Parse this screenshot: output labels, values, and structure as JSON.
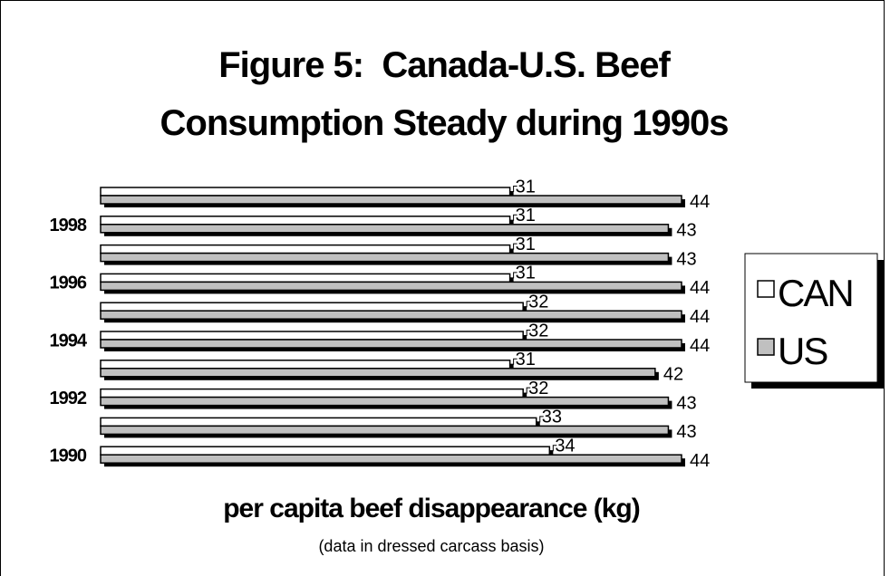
{
  "chart_data": {
    "type": "hbar",
    "title": "Figure 5:  Canada-U.S. Beef Consumption Steady during 1990s",
    "x_label": "per capita beef disappearance (kg)",
    "subtitle": "(data in dressed carcass basis)",
    "categories": [
      null,
      "1998",
      null,
      "1996",
      null,
      "1994",
      null,
      "1992",
      null,
      "1990"
    ],
    "series": [
      {
        "name": "CAN",
        "color": "#ffffff",
        "values": [
          31,
          31,
          31,
          31,
          32,
          32,
          31,
          32,
          33,
          34
        ]
      },
      {
        "name": "US",
        "color": "#c0c0c0",
        "values": [
          44,
          43,
          43,
          44,
          44,
          44,
          42,
          43,
          43,
          44
        ]
      }
    ],
    "legend": "right"
  }
}
